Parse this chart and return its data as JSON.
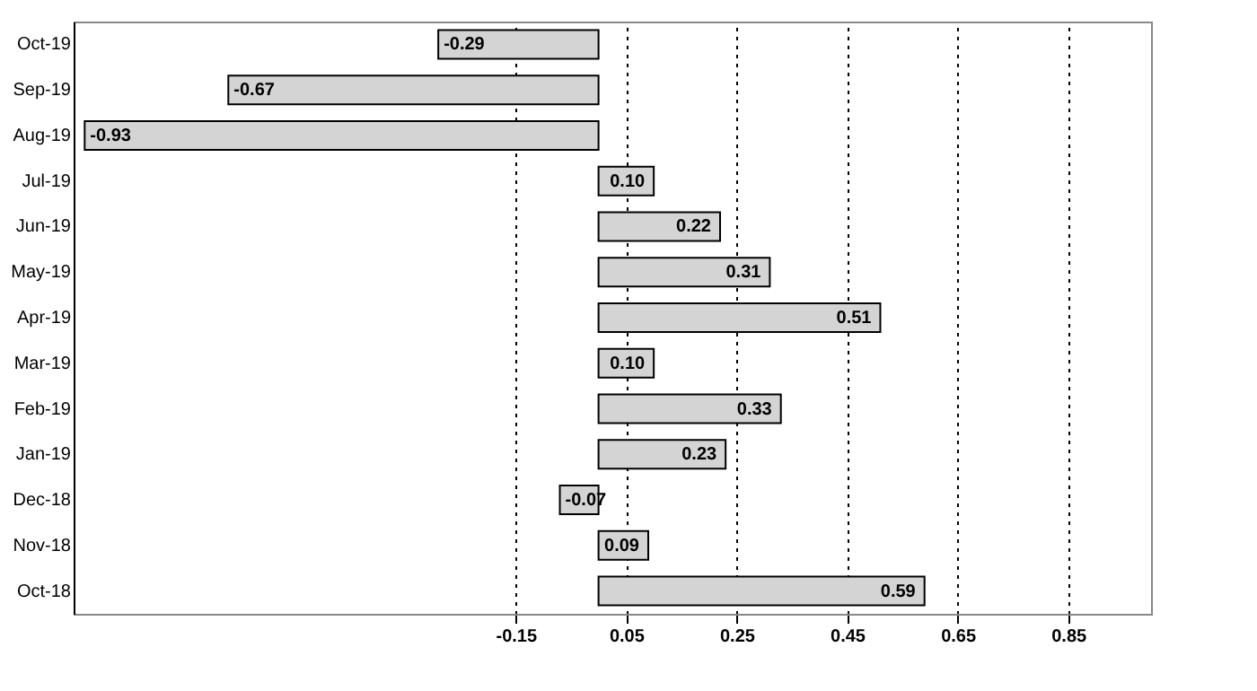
{
  "chart_data": {
    "type": "bar",
    "orientation": "horizontal",
    "categories": [
      "Oct-19",
      "Sep-19",
      "Aug-19",
      "Jul-19",
      "Jun-19",
      "May-19",
      "Apr-19",
      "Mar-19",
      "Feb-19",
      "Jan-19",
      "Dec-18",
      "Nov-18",
      "Oct-18"
    ],
    "values": [
      -0.29,
      -0.67,
      -0.93,
      0.1,
      0.22,
      0.31,
      0.51,
      0.1,
      0.33,
      0.23,
      -0.07,
      0.09,
      0.59
    ],
    "value_labels": [
      "-0.29",
      "-0.67",
      "-0.93",
      "0.10",
      "0.22",
      "0.31",
      "0.51",
      "0.10",
      "0.33",
      "0.23",
      "-0.07",
      "0.09",
      "0.59"
    ],
    "color": "#d4d4d4",
    "xlim": [
      -0.95,
      1.0
    ],
    "xticks": [
      {
        "value": -0.15,
        "label": "-0.15"
      },
      {
        "value": 0.05,
        "label": "0.05"
      },
      {
        "value": 0.25,
        "label": "0.25"
      },
      {
        "value": 0.45,
        "label": "0.45"
      },
      {
        "value": 0.65,
        "label": "0.65"
      },
      {
        "value": 0.85,
        "label": "0.85"
      }
    ],
    "grid": "x"
  }
}
